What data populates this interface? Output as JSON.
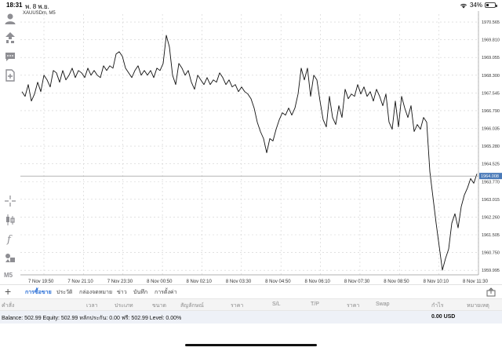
{
  "status_bar": {
    "time": "18:31",
    "date": "พ. 8 พ.ย.",
    "battery": "34%",
    "battery_level": 0.34
  },
  "toolbar": {
    "mode_label": "M5"
  },
  "chart": {
    "symbol_label": "XAUUSDm, M5",
    "current_price": "1964.008",
    "price_labels": [
      "1970.565",
      "1969.810",
      "1969.055",
      "1968.300",
      "1967.545",
      "1966.790",
      "1966.035",
      "1965.280",
      "1964.525",
      "1963.770",
      "1963.015",
      "1962.260",
      "1961.505",
      "1960.750",
      "1959.995"
    ],
    "time_labels": [
      "7 Nov 19:50",
      "7 Nov 21:10",
      "7 Nov 23:30",
      "8 Nov 00:50",
      "8 Nov 02:10",
      "8 Nov 03:30",
      "8 Nov 04:50",
      "8 Nov 06:10",
      "8 Nov 07:30",
      "8 Nov 08:50",
      "8 Nov 10:10",
      "8 Nov 11:30"
    ],
    "colors": {
      "line": "#111111",
      "grid": "#d0d0d0",
      "price_tag_bg": "#4a7ab8",
      "price_tag_fg": "#ffffff"
    }
  },
  "chart_data": {
    "type": "line",
    "ylim": [
      1959.8,
      1970.9
    ],
    "grid": true,
    "values": [
      1967.6,
      1967.4,
      1967.9,
      1967.2,
      1967.5,
      1968.0,
      1967.6,
      1968.3,
      1968.1,
      1967.8,
      1968.5,
      1968.4,
      1968.0,
      1968.5,
      1968.1,
      1968.3,
      1968.6,
      1968.2,
      1968.5,
      1968.4,
      1968.2,
      1968.6,
      1968.3,
      1968.5,
      1968.3,
      1968.2,
      1968.7,
      1968.5,
      1968.7,
      1968.6,
      1969.2,
      1969.3,
      1969.1,
      1968.6,
      1968.4,
      1968.2,
      1968.5,
      1968.7,
      1968.3,
      1968.5,
      1968.3,
      1968.5,
      1968.2,
      1968.6,
      1968.5,
      1968.8,
      1970.0,
      1969.5,
      1968.3,
      1967.9,
      1968.8,
      1968.6,
      1968.3,
      1968.5,
      1968.0,
      1967.7,
      1968.3,
      1968.1,
      1967.9,
      1968.2,
      1967.9,
      1968.1,
      1968.0,
      1968.4,
      1968.2,
      1967.9,
      1968.1,
      1967.8,
      1967.9,
      1967.6,
      1967.8,
      1967.6,
      1967.5,
      1967.3,
      1966.9,
      1966.3,
      1965.9,
      1965.6,
      1965.0,
      1965.6,
      1965.5,
      1966.0,
      1966.4,
      1966.7,
      1966.6,
      1966.9,
      1966.6,
      1966.9,
      1967.5,
      1968.6,
      1968.1,
      1968.6,
      1967.4,
      1968.3,
      1968.1,
      1967.2,
      1966.4,
      1966.1,
      1967.4,
      1966.5,
      1966.2,
      1967.0,
      1966.5,
      1967.7,
      1967.3,
      1967.5,
      1967.4,
      1967.9,
      1967.5,
      1967.8,
      1967.4,
      1967.6,
      1967.2,
      1967.7,
      1967.4,
      1967.0,
      1967.5,
      1966.3,
      1966.0,
      1967.2,
      1966.1,
      1967.4,
      1966.9,
      1966.5,
      1967.0,
      1965.9,
      1966.2,
      1966.0,
      1966.5,
      1966.3,
      1964.2,
      1963.1,
      1962.0,
      1961.0,
      1960.0,
      1960.5,
      1960.9,
      1962.0,
      1962.4,
      1961.8,
      1962.7,
      1963.2,
      1963.5,
      1963.9,
      1963.7,
      1964.1
    ],
    "price_ticks": [
      1970.565,
      1969.81,
      1969.055,
      1968.3,
      1967.545,
      1966.79,
      1966.035,
      1965.28,
      1964.525,
      1963.77,
      1963.015,
      1962.26,
      1961.505,
      1960.75,
      1959.995
    ]
  },
  "tabs": [
    {
      "label": "การซื้อขาย",
      "active": true
    },
    {
      "label": "ประวัติ",
      "active": false
    },
    {
      "label": "กล่องจดหมาย",
      "active": false
    },
    {
      "label": "ข่าว",
      "active": false
    },
    {
      "label": "บันทึก",
      "active": false
    },
    {
      "label": "การตั้งค่า",
      "active": false
    }
  ],
  "columns": [
    "คำสั่ง",
    "เวลา",
    "ประเภท",
    "ขนาด",
    "สัญลักษณ์",
    "ราคา",
    "S/L",
    "T/P",
    "ราคา",
    "Swap",
    "กำไร",
    "หมายเหตุ"
  ],
  "balance": {
    "text": "Balance: 502.99 Equity: 502.99 หลักประกัน: 0.00 ฟรี: 502.99 Level: 0.00%",
    "profit": "0.00  USD"
  }
}
